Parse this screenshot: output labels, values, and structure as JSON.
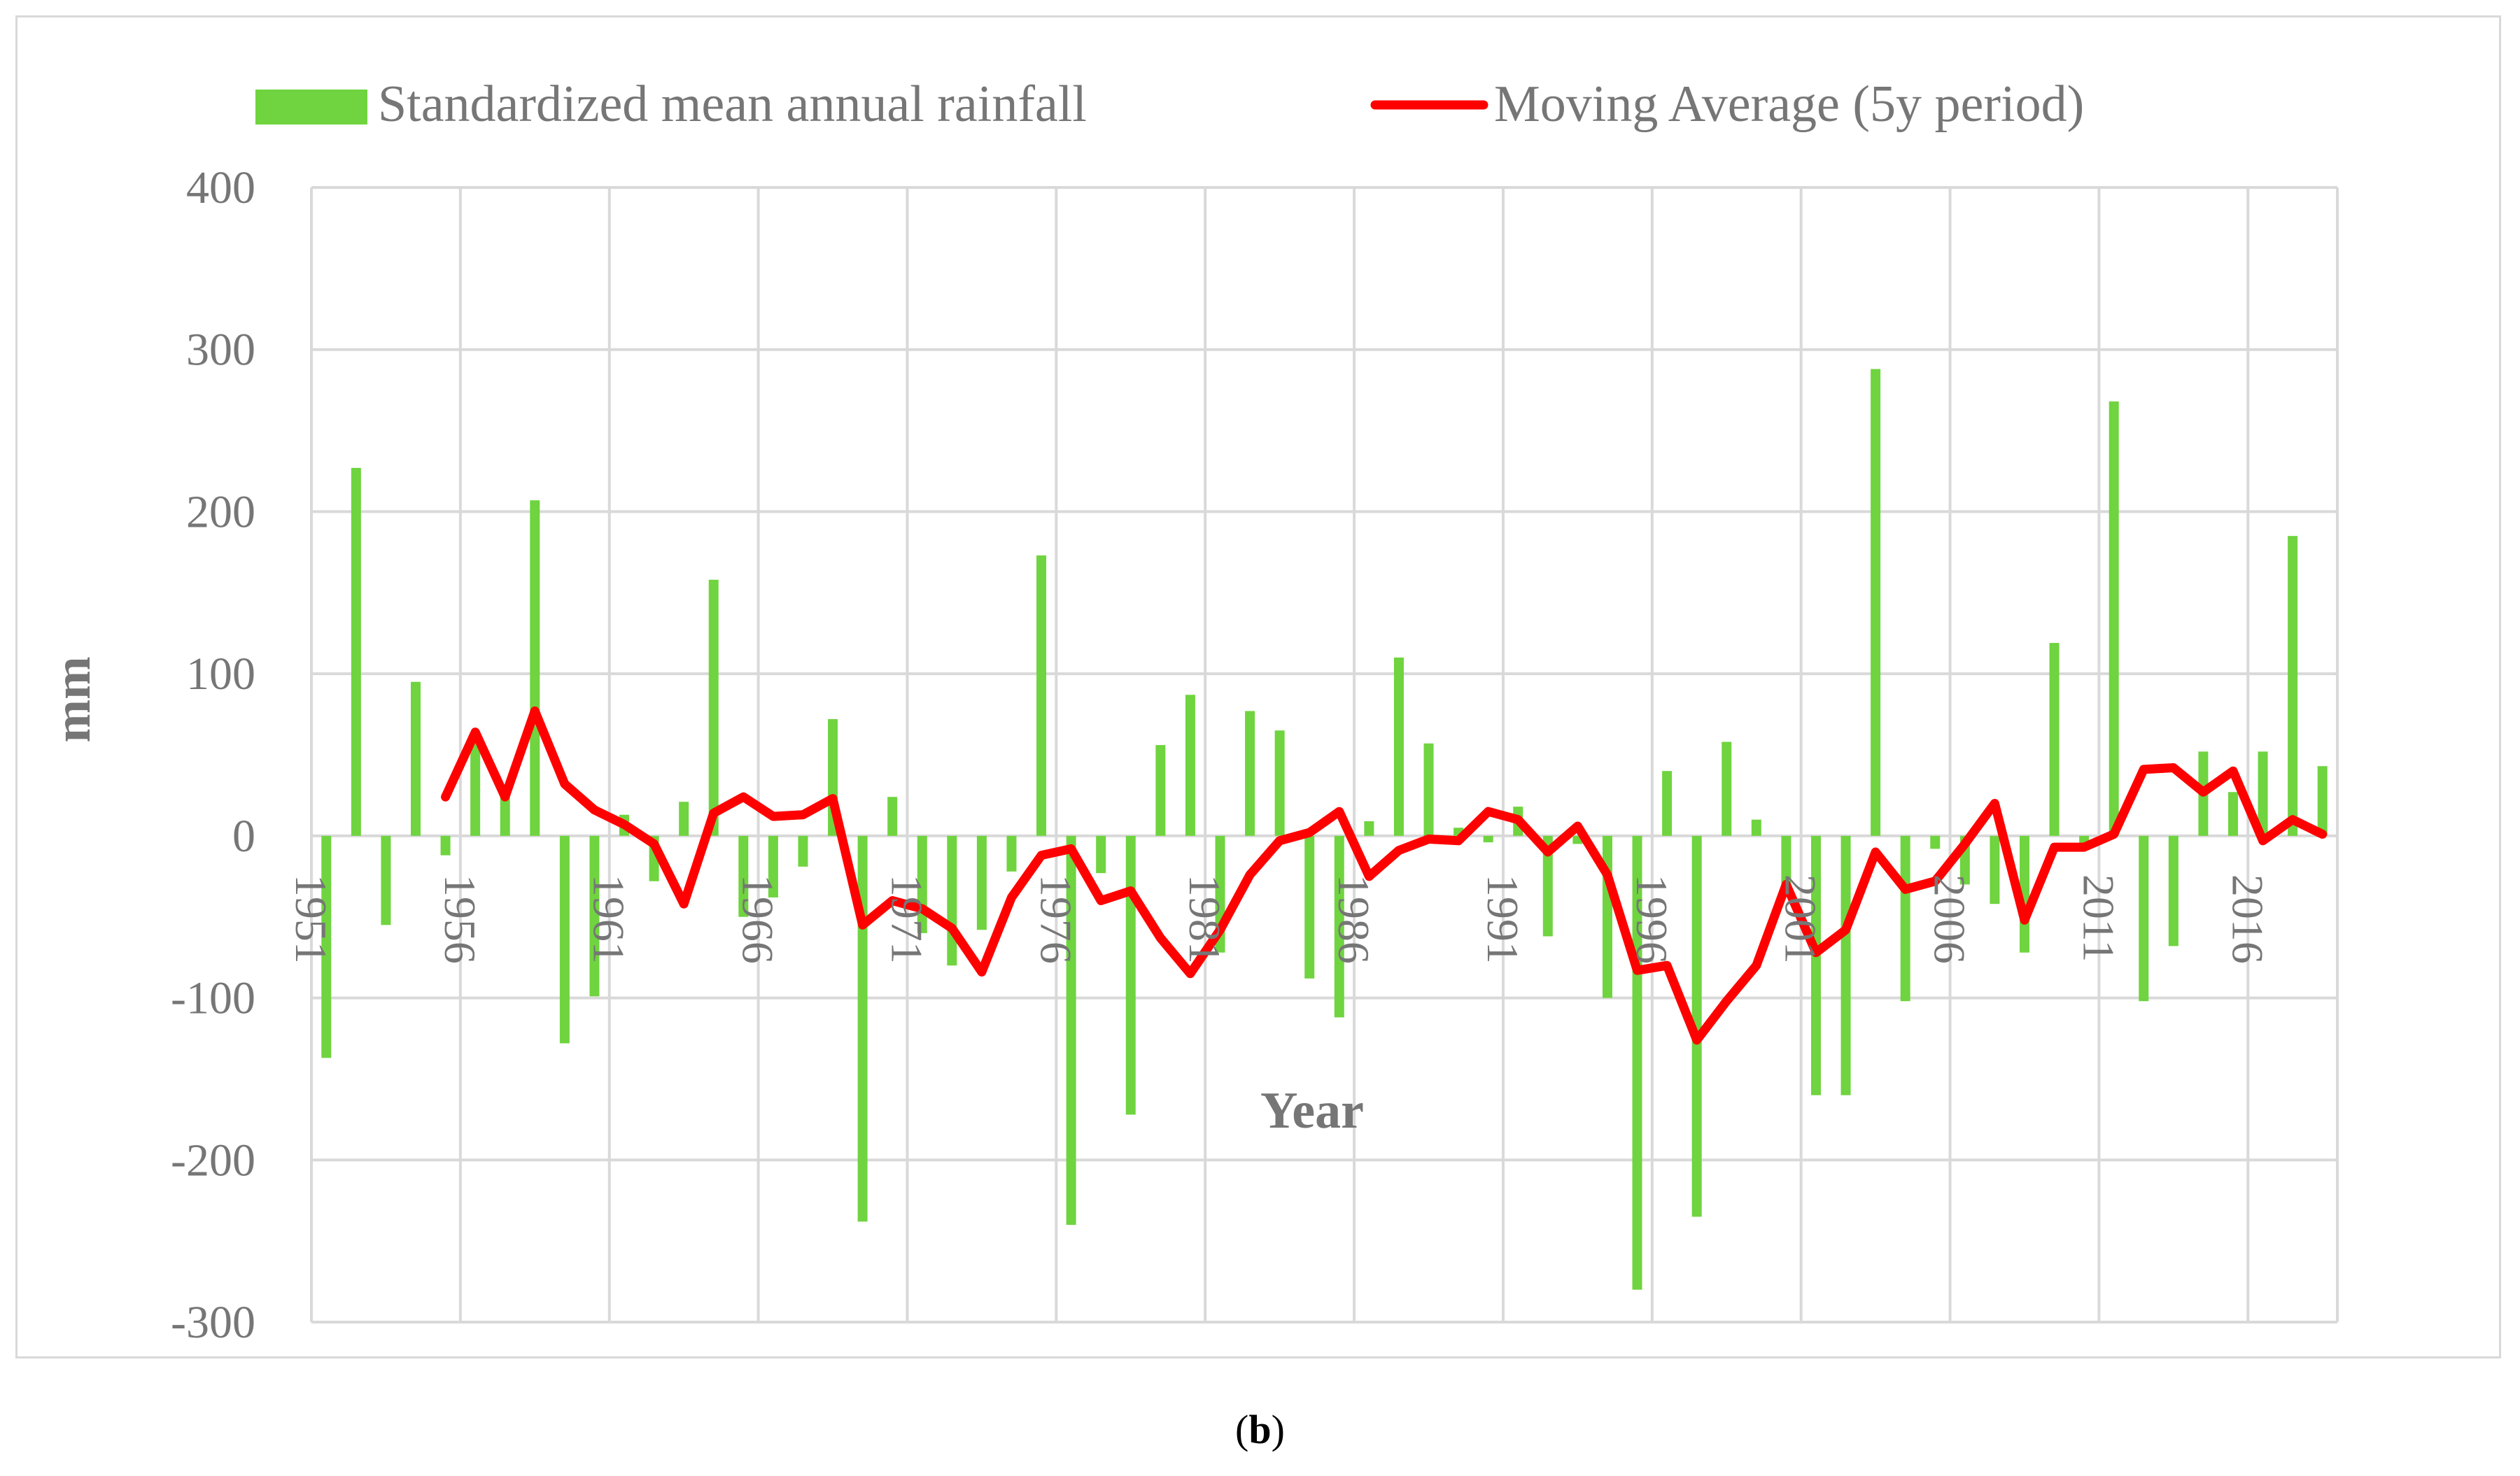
{
  "chart_data": {
    "type": "bar",
    "title": "",
    "xlabel": "Year",
    "ylabel": "mm",
    "ylim": [
      -300,
      400
    ],
    "yticks": [
      400,
      300,
      200,
      100,
      0,
      -100,
      -200,
      -300
    ],
    "tick_labels": [
      "1951",
      "1956",
      "1961",
      "1966",
      "1971",
      "1976",
      "1981",
      "1986",
      "1991",
      "1996",
      "2001",
      "2006",
      "2011",
      "2016"
    ],
    "legend": {
      "position": "top",
      "bars_label": "Standardized mean annual rainfall",
      "line_label": "Moving Average (5y period)"
    },
    "colors": {
      "bars": "#6fd43f",
      "line": "#ff0000",
      "grid": "#d9d9d9",
      "text": "#767676"
    },
    "years": [
      1951,
      1952,
      1953,
      1954,
      1955,
      1956,
      1957,
      1958,
      1959,
      1960,
      1961,
      1962,
      1963,
      1964,
      1965,
      1966,
      1967,
      1968,
      1969,
      1970,
      1971,
      1972,
      1973,
      1974,
      1975,
      1976,
      1977,
      1978,
      1979,
      1980,
      1981,
      1982,
      1983,
      1984,
      1985,
      1986,
      1987,
      1988,
      1989,
      1990,
      1991,
      1992,
      1993,
      1994,
      1995,
      1996,
      1997,
      1998,
      1999,
      2000,
      2001,
      2002,
      2003,
      2004,
      2005,
      2006,
      2007,
      2008,
      2009,
      2010,
      2011,
      2012,
      2013,
      2014,
      2015,
      2016,
      2017,
      2018
    ],
    "series": [
      {
        "name": "Standardized mean annual rainfall",
        "type": "bar",
        "values": [
          -137,
          227,
          -55,
          95,
          -12,
          60,
          30,
          207,
          -128,
          -99,
          13,
          -28,
          21,
          158,
          -50,
          -38,
          -19,
          72,
          -238,
          24,
          -60,
          -80,
          -58,
          -22,
          173,
          -240,
          -23,
          -172,
          56,
          87,
          -72,
          77,
          65,
          -88,
          -112,
          9,
          110,
          57,
          5,
          -4,
          18,
          -62,
          -5,
          -100,
          -280,
          40,
          -235,
          58,
          10,
          -30,
          -160,
          -160,
          288,
          -102,
          -8,
          -30,
          -42,
          -72,
          119,
          -5,
          268,
          -102,
          -68,
          52,
          27,
          52,
          185,
          43
        ]
      },
      {
        "name": "Moving Average (5y period)",
        "type": "line",
        "values": [
          null,
          null,
          null,
          null,
          24,
          64,
          24,
          77,
          32,
          16,
          7,
          -5,
          -42,
          14,
          24,
          12,
          13,
          23,
          -55,
          -40,
          -45,
          -57,
          -84,
          -38,
          -12,
          -8,
          -40,
          -34,
          -63,
          -85,
          -58,
          -24,
          -3,
          2,
          15,
          -25,
          -9,
          -2,
          -3,
          15,
          10,
          -10,
          6,
          -24,
          -83,
          -80,
          -126,
          -102,
          -80,
          -30,
          -72,
          -58,
          -10,
          -33,
          -28,
          -5,
          20,
          -52,
          -7,
          -7,
          1,
          41,
          42,
          27,
          40,
          -3,
          10,
          1
        ]
      }
    ]
  },
  "caption": {
    "open": "(",
    "letter": "b",
    "close": ")"
  }
}
